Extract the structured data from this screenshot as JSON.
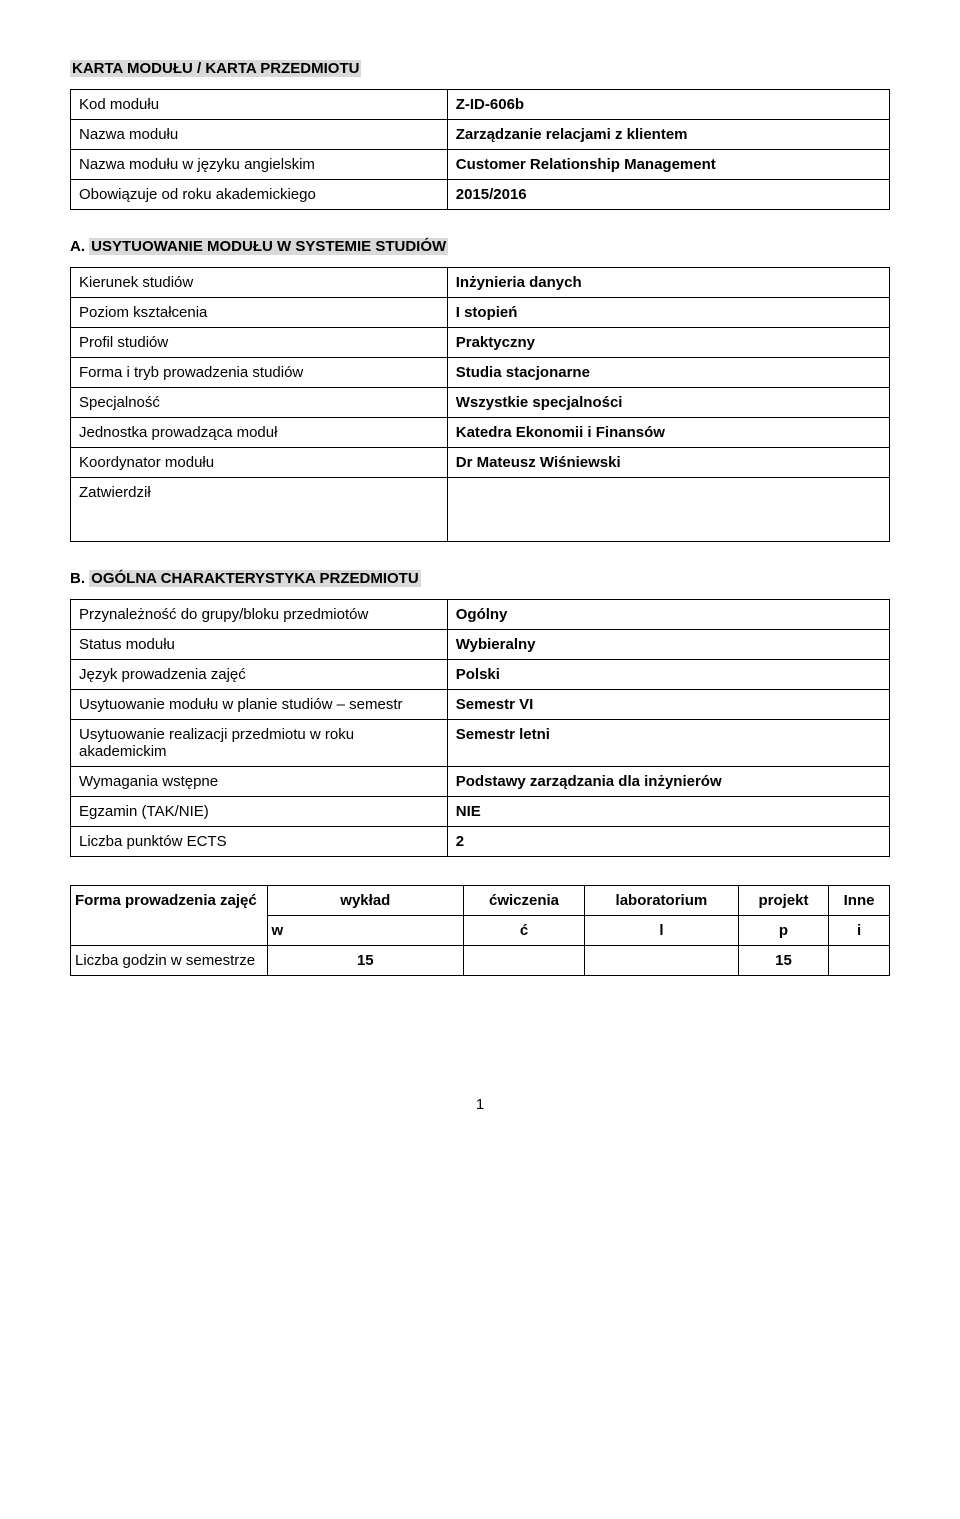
{
  "doc_title": "KARTA  MODUŁU / KARTA PRZEDMIOTU",
  "top_table": {
    "rows": [
      {
        "label": "Kod modułu",
        "value": "Z-ID-606b"
      },
      {
        "label": "Nazwa modułu",
        "value": "Zarządzanie relacjami z klientem"
      },
      {
        "label": "Nazwa modułu w języku angielskim",
        "value": "Customer Relationship Management"
      },
      {
        "label": "Obowiązuje od roku akademickiego",
        "value": "2015/2016"
      }
    ]
  },
  "section_a": {
    "heading_prefix": "A.",
    "heading": "USYTUOWANIE MODUŁU W SYSTEMIE STUDIÓW",
    "rows": [
      {
        "label": "Kierunek studiów",
        "value": "Inżynieria danych"
      },
      {
        "label": "Poziom kształcenia",
        "value": "I stopień"
      },
      {
        "label": "Profil studiów",
        "value": "Praktyczny"
      },
      {
        "label": "Forma i tryb prowadzenia studiów",
        "value": "Studia stacjonarne"
      },
      {
        "label": "Specjalność",
        "value": "Wszystkie specjalności"
      },
      {
        "label": "Jednostka prowadząca moduł",
        "value": "Katedra Ekonomii i Finansów"
      },
      {
        "label": "Koordynator modułu",
        "value": "Dr Mateusz Wiśniewski"
      }
    ],
    "approver_label": "Zatwierdził",
    "approver_value": ""
  },
  "section_b": {
    "heading_prefix": "B.",
    "heading": "OGÓLNA CHARAKTERYSTYKA PRZEDMIOTU",
    "rows": [
      {
        "label": "Przynależność do grupy/bloku przedmiotów",
        "value": "Ogólny"
      },
      {
        "label": "Status modułu",
        "value": "Wybieralny"
      },
      {
        "label": "Język prowadzenia zajęć",
        "value": "Polski"
      },
      {
        "label": "Usytuowanie modułu w planie studiów – semestr",
        "value": "Semestr VI"
      },
      {
        "label": "Usytuowanie realizacji przedmiotu w roku akademickim",
        "value": "Semestr letni"
      },
      {
        "label": "Wymagania wstępne",
        "value": "Podstawy zarządzania dla inżynierów"
      },
      {
        "label": "Egzamin (TAK/NIE)",
        "value": "NIE"
      },
      {
        "label": "Liczba punktów ECTS",
        "value": "2"
      }
    ]
  },
  "forma_table": {
    "row1_label": "Forma prowadzenia zajęć",
    "row2_label": "Liczba godzin w semestrze",
    "cols": [
      {
        "h1": "wykład",
        "h2": "w",
        "v": "15"
      },
      {
        "h1": "ćwiczenia",
        "h2": "ć",
        "v": ""
      },
      {
        "h1": "laboratorium",
        "h2": "l",
        "v": ""
      },
      {
        "h1": "projekt",
        "h2": "p",
        "v": "15"
      },
      {
        "h1": "Inne",
        "h2": "i",
        "v": ""
      }
    ]
  },
  "page_number": "1"
}
